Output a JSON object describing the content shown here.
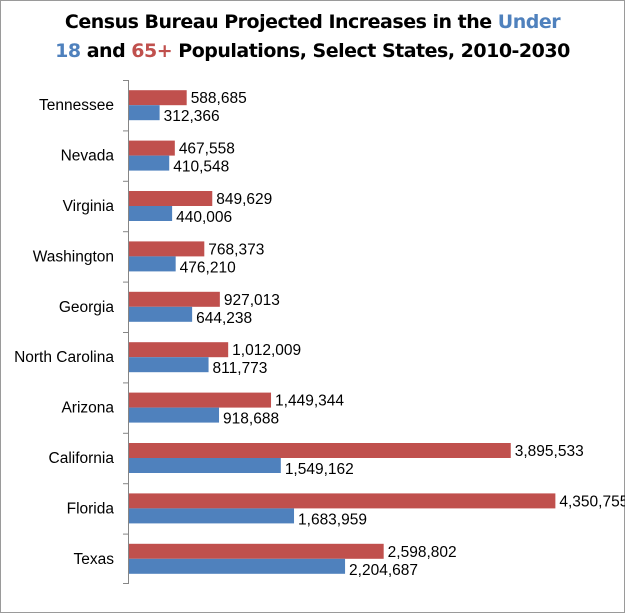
{
  "chart_data": {
    "type": "bar",
    "orientation": "horizontal",
    "title_parts": [
      {
        "text": "Census Bureau Projected Increases in the ",
        "color": "#000000",
        "line": 1
      },
      {
        "text": "Under",
        "color": "#4f81bd",
        "line": 1
      },
      {
        "text": "18",
        "color": "#4f81bd",
        "line": 2
      },
      {
        "text": " and ",
        "color": "#000000",
        "line": 2
      },
      {
        "text": "65+",
        "color": "#c0504d",
        "line": 2
      },
      {
        "text": " Populations, Select States, 2010-2030",
        "color": "#000000",
        "line": 2
      }
    ],
    "categories": [
      "Tennessee",
      "Nevada",
      "Virginia",
      "Washington",
      "Georgia",
      "North Carolina",
      "Arizona",
      "California",
      "Florida",
      "Texas"
    ],
    "series": [
      {
        "name": "65+",
        "color": "#c0504d",
        "values": [
          588685,
          467558,
          849629,
          768373,
          927013,
          1012009,
          1449344,
          3895533,
          4350755,
          2598802
        ],
        "labels": [
          "588,685",
          "467,558",
          "849,629",
          "768,373",
          "927,013",
          "1,012,009",
          "1,449,344",
          "3,895,533",
          "4,350,755",
          "2,598,802"
        ]
      },
      {
        "name": "Under 18",
        "color": "#4f81bd",
        "values": [
          312366,
          410548,
          440006,
          476210,
          644238,
          811773,
          918688,
          1549162,
          1683959,
          2204687
        ],
        "labels": [
          "312,366",
          "410,548",
          "440,006",
          "476,210",
          "644,238",
          "811,773",
          "918,688",
          "1,549,162",
          "1,683,959",
          "2,204,687"
        ]
      }
    ],
    "xlim": [
      0,
      5000000
    ],
    "axis_color": "#868686",
    "grid": false,
    "legend": "none"
  }
}
